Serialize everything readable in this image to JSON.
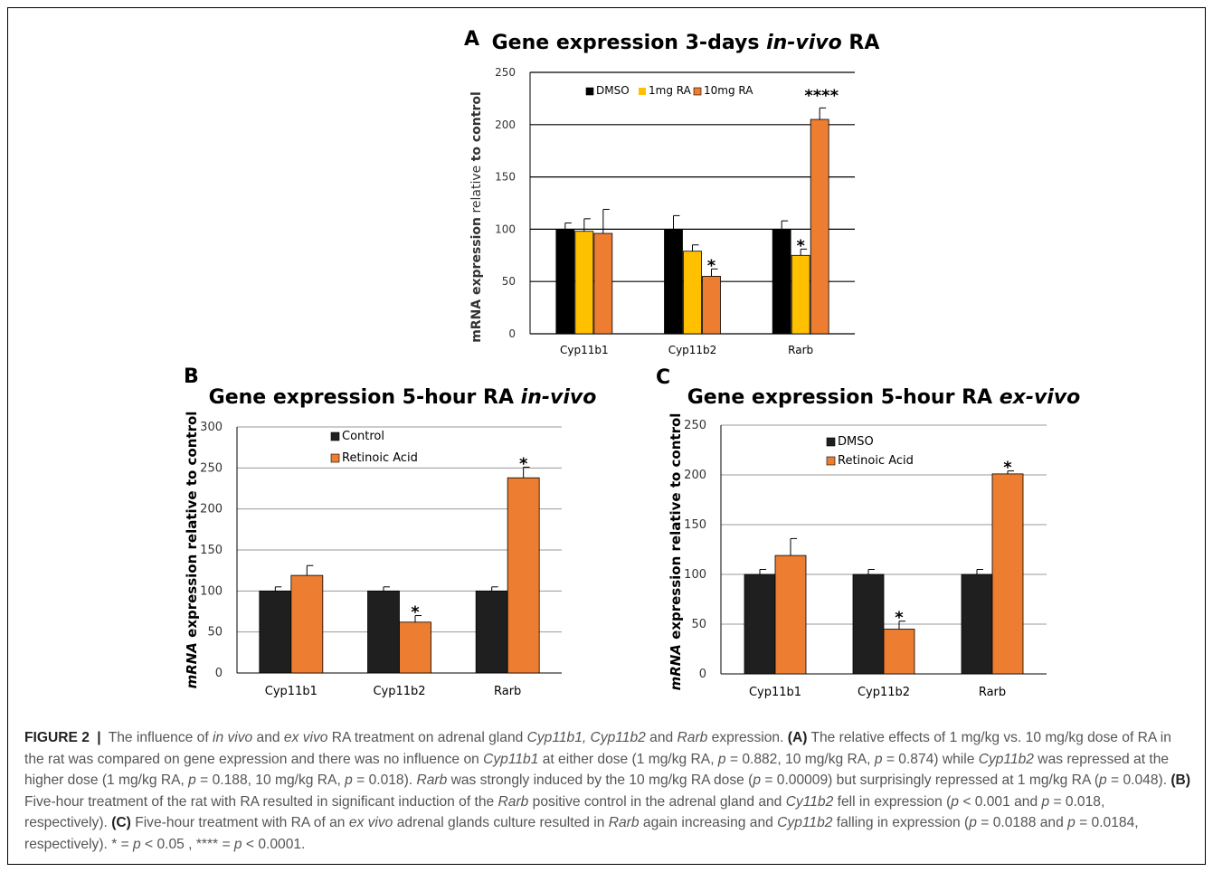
{
  "colors": {
    "black": "#000000",
    "yellow": "#FFC000",
    "orange": "#ED7D31",
    "grid": "#868686",
    "text": "#333333"
  },
  "chart_data": [
    {
      "panel": "A",
      "type": "bar",
      "title": "Gene expression 3-days in-vivo RA",
      "title_plain": "Gene expression 3-days ",
      "title_italic": "in-vivo",
      "title_tail": " RA",
      "ylabel_bold": "mRNA expression",
      "ylabel_normal": " relative ",
      "ylabel_tail": "to control",
      "categories": [
        "Cyp11b1",
        "Cyp11b2",
        "Rarb"
      ],
      "ylim": [
        0,
        250
      ],
      "yticks": [
        "0",
        "50",
        "100",
        "150",
        "200",
        "250"
      ],
      "grid": true,
      "legend_position": "top",
      "series": [
        {
          "name": "DMSO",
          "color": "#000000",
          "values": [
            100,
            100,
            100
          ],
          "errors": [
            6,
            13,
            8
          ]
        },
        {
          "name": "1mg RA",
          "color": "#FFC000",
          "values": [
            98,
            79,
            75
          ],
          "errors": [
            12,
            6,
            6
          ]
        },
        {
          "name": "10mg RA",
          "color": "#ED7D31",
          "values": [
            96,
            55,
            205
          ],
          "errors": [
            23,
            7,
            11
          ]
        }
      ],
      "annotations": [
        {
          "category": 1,
          "series": 2,
          "text": "*"
        },
        {
          "category": 2,
          "series": 1,
          "text": "*"
        },
        {
          "category": 2,
          "series": 2,
          "text": "****"
        }
      ]
    },
    {
      "panel": "B",
      "type": "bar",
      "title": "Gene expression 5-hour RA in-vivo",
      "title_plain": "Gene expression 5-hour RA ",
      "title_italic": "in-vivo",
      "title_tail": "",
      "ylabel_italic": "mRNA",
      "ylabel_rest": " expression relative to control",
      "categories": [
        "Cyp11b1",
        "Cyp11b2",
        "Rarb"
      ],
      "ylim": [
        0,
        300
      ],
      "yticks": [
        "0",
        "50",
        "100",
        "150",
        "200",
        "250",
        "300"
      ],
      "grid": true,
      "legend_position": "top",
      "series": [
        {
          "name": "Control",
          "color": "#1F1F1F",
          "values": [
            100,
            100,
            100
          ],
          "errors": [
            5,
            5,
            5
          ]
        },
        {
          "name": "Retinoic Acid",
          "color": "#ED7D31",
          "values": [
            119,
            62,
            238
          ],
          "errors": [
            12,
            8,
            13
          ]
        }
      ],
      "annotations": [
        {
          "category": 1,
          "series": 1,
          "text": "*"
        },
        {
          "category": 2,
          "series": 1,
          "text": "*"
        }
      ]
    },
    {
      "panel": "C",
      "type": "bar",
      "title": "Gene expression 5-hour RA ex-vivo",
      "title_plain": "Gene expression 5-hour RA ",
      "title_italic": "ex-vivo",
      "title_tail": "",
      "ylabel_italic": "mRNA",
      "ylabel_rest": " expression relative to control",
      "categories": [
        "Cyp11b1",
        "Cyp11b2",
        "Rarb"
      ],
      "ylim": [
        0,
        250
      ],
      "yticks": [
        "0",
        "50",
        "100",
        "150",
        "200",
        "250"
      ],
      "grid": true,
      "legend_position": "top",
      "series": [
        {
          "name": "DMSO",
          "color": "#1F1F1F",
          "values": [
            100,
            100,
            100
          ],
          "errors": [
            5,
            5,
            5
          ]
        },
        {
          "name": "Retinoic Acid",
          "color": "#ED7D31",
          "values": [
            119,
            45,
            201
          ],
          "errors": [
            17,
            8,
            3
          ]
        }
      ],
      "annotations": [
        {
          "category": 1,
          "series": 1,
          "text": "*"
        },
        {
          "category": 2,
          "series": 1,
          "text": "*"
        }
      ]
    }
  ],
  "caption": {
    "figure_label": "FIGURE 2",
    "separator": "|",
    "segments": [
      {
        "t": "The influence of ",
        "s": "n"
      },
      {
        "t": "in vivo",
        "s": "i"
      },
      {
        "t": " and ",
        "s": "n"
      },
      {
        "t": "ex vivo",
        "s": "i"
      },
      {
        "t": " RA treatment on adrenal gland ",
        "s": "n"
      },
      {
        "t": "Cyp11b1, Cyp11b2",
        "s": "i"
      },
      {
        "t": " and ",
        "s": "n"
      },
      {
        "t": "Rarb",
        "s": "i"
      },
      {
        "t": " expression. ",
        "s": "n"
      },
      {
        "t": "(A)",
        "s": "b"
      },
      {
        "t": " The relative effects of 1 mg/kg vs. 10 mg/kg dose of RA in the rat was compared on gene expression and there was no influence on ",
        "s": "n"
      },
      {
        "t": "Cyp11b1",
        "s": "i"
      },
      {
        "t": " at either dose (1 mg/kg RA, ",
        "s": "n"
      },
      {
        "t": "p",
        "s": "i"
      },
      {
        "t": " = 0.882, 10 mg/kg RA, ",
        "s": "n"
      },
      {
        "t": "p",
        "s": "i"
      },
      {
        "t": " = 0.874) while ",
        "s": "n"
      },
      {
        "t": "Cyp11b2",
        "s": "i"
      },
      {
        "t": " was repressed at the higher dose (1 mg/kg RA, ",
        "s": "n"
      },
      {
        "t": "p",
        "s": "i"
      },
      {
        "t": " = 0.188, 10 mg/kg RA, ",
        "s": "n"
      },
      {
        "t": "p",
        "s": "i"
      },
      {
        "t": " = 0.018). ",
        "s": "n"
      },
      {
        "t": "Rarb",
        "s": "i"
      },
      {
        "t": " was strongly induced by the 10 mg/kg RA dose (",
        "s": "n"
      },
      {
        "t": "p",
        "s": "i"
      },
      {
        "t": " = 0.00009) but surprisingly repressed at 1 mg/kg RA (",
        "s": "n"
      },
      {
        "t": "p",
        "s": "i"
      },
      {
        "t": " = 0.048). ",
        "s": "n"
      },
      {
        "t": "(B)",
        "s": "b"
      },
      {
        "t": " Five-hour treatment of the rat with RA resulted in significant induction of the ",
        "s": "n"
      },
      {
        "t": "Rarb",
        "s": "i"
      },
      {
        "t": " positive control in the adrenal gland and ",
        "s": "n"
      },
      {
        "t": "Cy11b2",
        "s": "i"
      },
      {
        "t": " fell in expression (",
        "s": "n"
      },
      {
        "t": "p",
        "s": "i"
      },
      {
        "t": " < 0.001 and ",
        "s": "n"
      },
      {
        "t": "p",
        "s": "i"
      },
      {
        "t": " = 0.018, respectively). ",
        "s": "n"
      },
      {
        "t": "(C)",
        "s": "b"
      },
      {
        "t": " Five-hour treatment with RA of an ",
        "s": "n"
      },
      {
        "t": "ex vivo",
        "s": "i"
      },
      {
        "t": " adrenal glands culture resulted in ",
        "s": "n"
      },
      {
        "t": "Rarb",
        "s": "i"
      },
      {
        "t": " again increasing and ",
        "s": "n"
      },
      {
        "t": "Cyp11b2",
        "s": "i"
      },
      {
        "t": " falling in expression (",
        "s": "n"
      },
      {
        "t": "p",
        "s": "i"
      },
      {
        "t": " = 0.0188 and ",
        "s": "n"
      },
      {
        "t": "p",
        "s": "i"
      },
      {
        "t": " = 0.0184, respectively). * = ",
        "s": "n"
      },
      {
        "t": "p",
        "s": "i"
      },
      {
        "t": " < 0.05 , **** = ",
        "s": "n"
      },
      {
        "t": "p",
        "s": "i"
      },
      {
        "t": " < 0.0001.",
        "s": "n"
      }
    ]
  }
}
